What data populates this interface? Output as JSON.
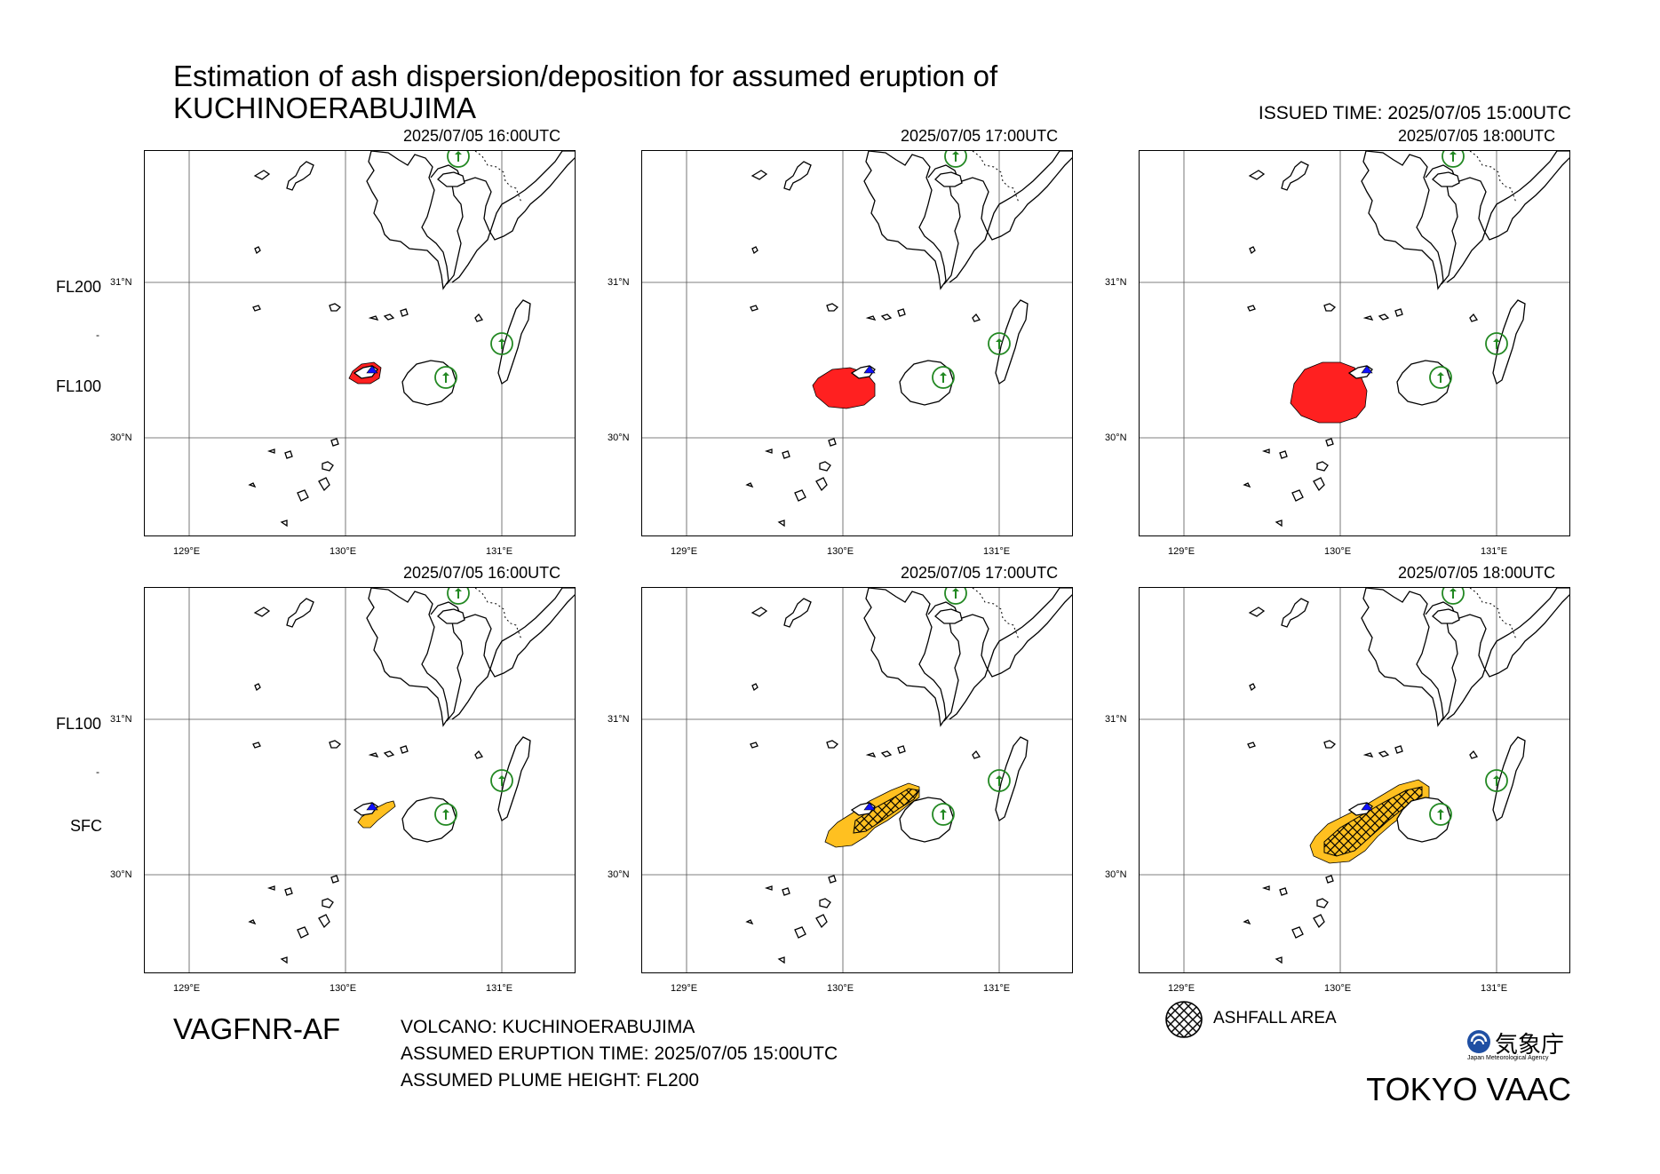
{
  "title": {
    "line1": "Estimation of ash dispersion/deposition for assumed eruption of",
    "line2": "KUCHINOERABUJIMA"
  },
  "issued_time": "ISSUED TIME: 2025/07/05 15:00UTC",
  "rows": [
    {
      "layer_top": "FL200",
      "layer_sep": "-",
      "layer_bottom": "FL100",
      "panels": [
        {
          "time": "2025/07/05 16:00UTC",
          "type": "dispersion",
          "stage": 1
        },
        {
          "time": "2025/07/05 17:00UTC",
          "type": "dispersion",
          "stage": 2
        },
        {
          "time": "2025/07/05 18:00UTC",
          "type": "dispersion",
          "stage": 3
        }
      ]
    },
    {
      "layer_top": "FL100",
      "layer_sep": "-",
      "layer_bottom": "SFC",
      "panels": [
        {
          "time": "2025/07/05 16:00UTC",
          "type": "deposition",
          "stage": 1
        },
        {
          "time": "2025/07/05 17:00UTC",
          "type": "deposition",
          "stage": 2
        },
        {
          "time": "2025/07/05 18:00UTC",
          "type": "deposition",
          "stage": 3
        }
      ]
    }
  ],
  "map": {
    "lat_labels": [
      "31°N",
      "30°N"
    ],
    "lon_labels": [
      "129°E",
      "130°E",
      "131°E"
    ],
    "colors": {
      "dispersion": "#ff2020",
      "deposition": "#ffc020",
      "volcano_marker": "#1010ff",
      "airport": "#228822"
    },
    "icons": [
      "airport-circle-icon",
      "volcano-triangle-icon"
    ]
  },
  "product_code": "VAGFNR-AF",
  "info": {
    "volcano": "VOLCANO: KUCHINOERABUJIMA",
    "eruption_time": "ASSUMED ERUPTION TIME: 2025/07/05 15:00UTC",
    "plume_height": "ASSUMED PLUME HEIGHT: FL200"
  },
  "legend": {
    "ashfall_label": "ASHFALL AREA",
    "icon": "crosshatch-circle-icon"
  },
  "agency": {
    "name_jp": "気象庁",
    "name_en": "Japan Meteorological Agency"
  },
  "vaac": "TOKYO VAAC"
}
